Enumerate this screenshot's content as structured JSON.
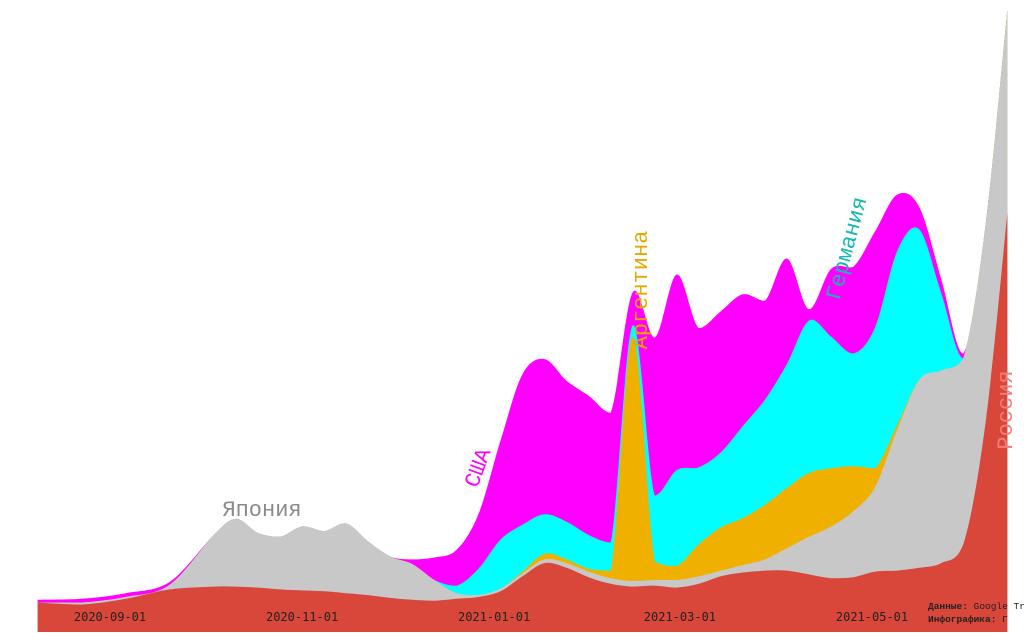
{
  "chart_data": {
    "type": "area",
    "subtype": "streamgraph",
    "x": [
      "2020-08-09",
      "2020-08-23",
      "2020-09-06",
      "2020-09-20",
      "2020-10-04",
      "2020-10-11",
      "2020-10-18",
      "2020-10-25",
      "2020-11-01",
      "2020-11-08",
      "2020-11-15",
      "2020-11-22",
      "2020-11-29",
      "2020-12-06",
      "2020-12-13",
      "2020-12-20",
      "2020-12-27",
      "2021-01-03",
      "2021-01-10",
      "2021-01-17",
      "2021-01-24",
      "2021-01-31",
      "2021-02-07",
      "2021-02-14",
      "2021-02-21",
      "2021-02-28",
      "2021-03-07",
      "2021-03-14",
      "2021-03-21",
      "2021-03-28",
      "2021-04-04",
      "2021-04-11",
      "2021-04-18",
      "2021-04-25",
      "2021-05-02",
      "2021-05-09",
      "2021-05-16",
      "2021-05-23",
      "2021-05-30",
      "2021-06-06",
      "2021-06-13"
    ],
    "x_ticks": [
      "2020-09-01",
      "2020-11-01",
      "2021-01-01",
      "2021-03-01",
      "2021-05-01"
    ],
    "series": [
      {
        "name": "Россия",
        "color": "#d9473b",
        "values": [
          10,
          8,
          14,
          24,
          27,
          27,
          26,
          24,
          23,
          22,
          20,
          18,
          15,
          13,
          12,
          14,
          16,
          22,
          38,
          52,
          47,
          37,
          30,
          27,
          28,
          26,
          30,
          38,
          42,
          44,
          44,
          40,
          36,
          37,
          43,
          44,
          47,
          52,
          72,
          200,
          425
        ]
      },
      {
        "name": "Япония",
        "color": "#c8c8c8",
        "values": [
          0,
          2,
          2,
          5,
          55,
          72,
          58,
          56,
          68,
          64,
          74,
          57,
          44,
          38,
          22,
          6,
          2,
          3,
          3,
          4,
          5,
          6,
          6,
          6,
          6,
          8,
          8,
          6,
          8,
          12,
          24,
          40,
          55,
          70,
          90,
          150,
          200,
          205,
          198,
          210,
          215
        ]
      },
      {
        "name": "Аргентина",
        "color": "#f0b000",
        "values": [
          0,
          0,
          0,
          0,
          0,
          0,
          0,
          0,
          0,
          0,
          0,
          0,
          0,
          0,
          0,
          0,
          0,
          0,
          2,
          6,
          4,
          3,
          8,
          260,
          20,
          15,
          34,
          46,
          50,
          58,
          64,
          68,
          62,
          48,
          20,
          5,
          0,
          0,
          0,
          0,
          0
        ]
      },
      {
        "name": "Германия",
        "color": "#00ffff",
        "values": [
          0,
          0,
          0,
          0,
          0,
          0,
          0,
          0,
          0,
          0,
          0,
          0,
          0,
          0,
          0,
          8,
          28,
          52,
          50,
          42,
          40,
          36,
          30,
          12,
          70,
          102,
          82,
          80,
          98,
          112,
          132,
          162,
          140,
          120,
          150,
          185,
          160,
          82,
          0,
          0,
          0
        ]
      },
      {
        "name": "США",
        "color": "#ff00ff",
        "values": [
          3,
          4,
          4,
          3,
          0,
          0,
          0,
          0,
          0,
          0,
          0,
          0,
          0,
          5,
          24,
          38,
          58,
          105,
          160,
          165,
          150,
          148,
          138,
          35,
          168,
          208,
          148,
          150,
          140,
          105,
          112,
          12,
          72,
          92,
          102,
          60,
          24,
          15,
          5,
          0,
          0
        ]
      }
    ],
    "annotations": [
      "Япония",
      "США",
      "Аргентина",
      "Германия",
      "Россия"
    ],
    "xlabel": "",
    "ylabel": "",
    "grid": false,
    "legend": "none"
  },
  "credits": {
    "data_label": "Данные:",
    "data_value": "Google Trends",
    "graphics_label": "Инфографика:",
    "graphics_value": "Г"
  }
}
